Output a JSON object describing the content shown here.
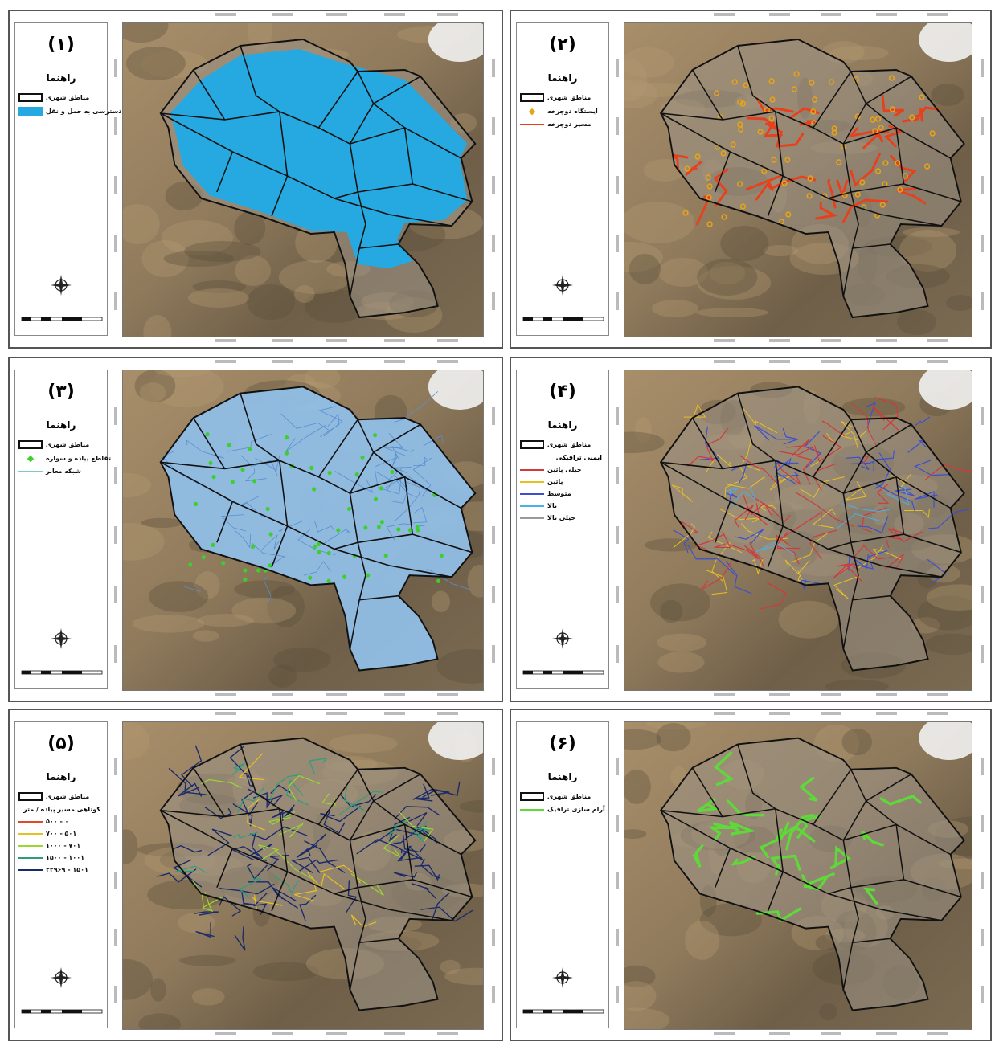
{
  "panels": [
    {
      "id": 1,
      "title": "(۱)",
      "legend_title": "راهنما",
      "items": [
        {
          "type": "box",
          "label": "مناطق شهری"
        },
        {
          "type": "fill",
          "color": "#26a9e0",
          "label": "دسترسی به حمل و نقل"
        }
      ],
      "layer": "access"
    },
    {
      "id": 2,
      "title": "(۲)",
      "legend_title": "راهنما",
      "items": [
        {
          "type": "box",
          "label": "مناطق شهری"
        },
        {
          "type": "dot",
          "color": "#e8a317",
          "label": "ایستگاه دوچرخه"
        },
        {
          "type": "line",
          "color": "#e8401c",
          "label": "مسیر دوچرخه"
        }
      ],
      "layer": "bike"
    },
    {
      "id": 3,
      "title": "(۳)",
      "legend_title": "راهنما",
      "items": [
        {
          "type": "box",
          "label": "مناطق شهری"
        },
        {
          "type": "dot",
          "color": "#3ecf2f",
          "label": "تقاطع پیاده و سواره"
        },
        {
          "type": "line",
          "color": "#7fc9c3",
          "label": "شبکه معابر"
        }
      ],
      "layer": "network"
    },
    {
      "id": 4,
      "title": "(۴)",
      "legend_title": "راهنما",
      "items": [
        {
          "type": "box",
          "label": "مناطق شهری"
        }
      ],
      "subhead": "ایمنی ترافیکی",
      "classes": [
        {
          "color": "#d03a3a",
          "label": "خیلی پائین"
        },
        {
          "color": "#e8c020",
          "label": "پائین"
        },
        {
          "color": "#3c4fd0",
          "label": "متوسط"
        },
        {
          "color": "#4ab0e8",
          "label": "بالا"
        },
        {
          "color": "#9a9a9a",
          "label": "خیلی بالا"
        }
      ],
      "layer": "safety"
    },
    {
      "id": 5,
      "title": "(۵)",
      "legend_title": "راهنما",
      "items": [
        {
          "type": "box",
          "label": "مناطق شهری"
        }
      ],
      "subhead": "کوتاهی مسیر پیاده / متر",
      "classes": [
        {
          "color": "#e04a2a",
          "label": "۰ - ۵۰۰"
        },
        {
          "color": "#e8c020",
          "label": "۵۰۱ - ۷۰۰"
        },
        {
          "color": "#9ad830",
          "label": "۷۰۱ - ۱۰۰۰"
        },
        {
          "color": "#2aa07a",
          "label": "۱۰۰۱ - ۱۵۰۰"
        },
        {
          "color": "#1a2a6a",
          "label": "۱۵۰۱ - ۲۲۹۶۹"
        }
      ],
      "layer": "walk"
    },
    {
      "id": 6,
      "title": "(۶)",
      "legend_title": "راهنما",
      "items": [
        {
          "type": "box",
          "label": "مناطق شهری"
        },
        {
          "type": "line",
          "color": "#5fd83a",
          "label": "آرام سازی ترافیک"
        }
      ],
      "layer": "calm"
    }
  ]
}
